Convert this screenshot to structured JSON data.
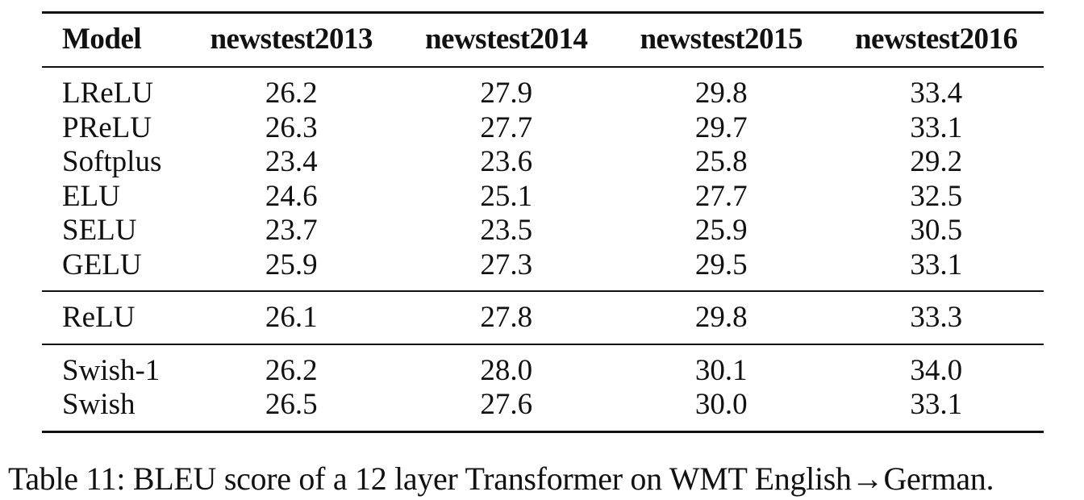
{
  "table": {
    "headers": [
      "Model",
      "newstest2013",
      "newstest2014",
      "newstest2015",
      "newstest2016"
    ],
    "groups": [
      [
        [
          "LReLU",
          "26.2",
          "27.9",
          "29.8",
          "33.4"
        ],
        [
          "PReLU",
          "26.3",
          "27.7",
          "29.7",
          "33.1"
        ],
        [
          "Softplus",
          "23.4",
          "23.6",
          "25.8",
          "29.2"
        ],
        [
          "ELU",
          "24.6",
          "25.1",
          "27.7",
          "32.5"
        ],
        [
          "SELU",
          "23.7",
          "23.5",
          "25.9",
          "30.5"
        ],
        [
          "GELU",
          "25.9",
          "27.3",
          "29.5",
          "33.1"
        ]
      ],
      [
        [
          "ReLU",
          "26.1",
          "27.8",
          "29.8",
          "33.3"
        ]
      ],
      [
        [
          "Swish-1",
          "26.2",
          "28.0",
          "30.1",
          "34.0"
        ],
        [
          "Swish",
          "26.5",
          "27.6",
          "30.0",
          "33.1"
        ]
      ]
    ]
  },
  "caption": "Table 11: BLEU score of a 12 layer Transformer on WMT English→German."
}
